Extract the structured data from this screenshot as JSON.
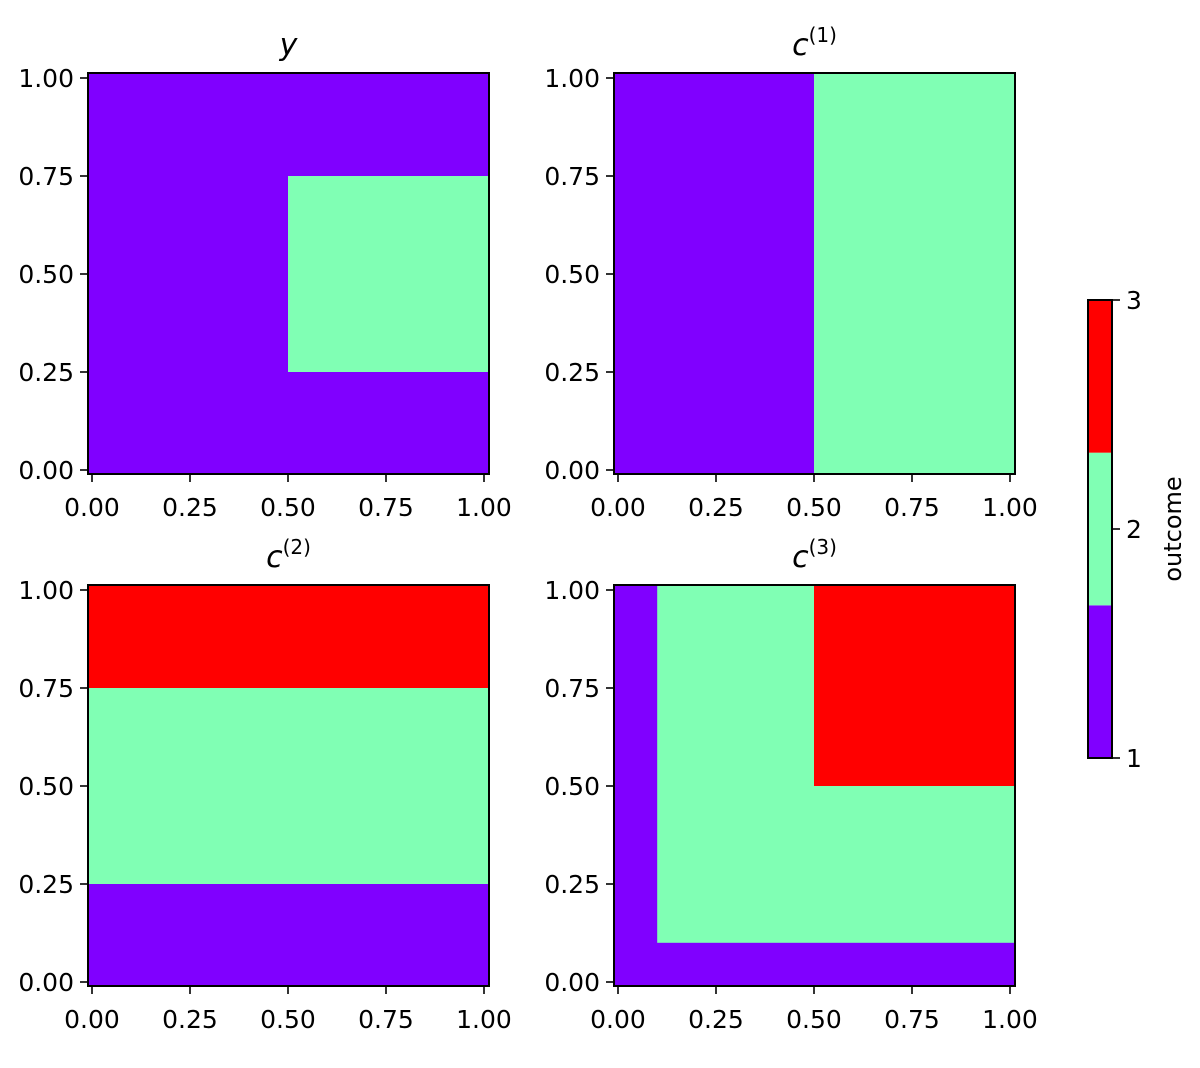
{
  "chart_data": [
    {
      "type": "heatmap",
      "title": "y",
      "title_sup": "",
      "xlim": [
        0,
        1
      ],
      "ylim": [
        0,
        1
      ],
      "xticks": [
        "0.00",
        "0.25",
        "0.50",
        "0.75",
        "1.00"
      ],
      "yticks": [
        "0.00",
        "0.25",
        "0.50",
        "0.75",
        "1.00"
      ],
      "background_outcome": 1,
      "regions": [
        {
          "x": [
            0.5,
            1.0
          ],
          "y": [
            0.25,
            0.75
          ],
          "outcome": 2
        }
      ]
    },
    {
      "type": "heatmap",
      "title": "c",
      "title_sup": "(1)",
      "xlim": [
        0,
        1
      ],
      "ylim": [
        0,
        1
      ],
      "xticks": [
        "0.00",
        "0.25",
        "0.50",
        "0.75",
        "1.00"
      ],
      "yticks": [
        "0.00",
        "0.25",
        "0.50",
        "0.75",
        "1.00"
      ],
      "background_outcome": 1,
      "regions": [
        {
          "x": [
            0.5,
            1.0
          ],
          "y": [
            0.0,
            1.0
          ],
          "outcome": 2
        }
      ]
    },
    {
      "type": "heatmap",
      "title": "c",
      "title_sup": "(2)",
      "xlim": [
        0,
        1
      ],
      "ylim": [
        0,
        1
      ],
      "xticks": [
        "0.00",
        "0.25",
        "0.50",
        "0.75",
        "1.00"
      ],
      "yticks": [
        "0.00",
        "0.25",
        "0.50",
        "0.75",
        "1.00"
      ],
      "background_outcome": 1,
      "regions": [
        {
          "x": [
            0.0,
            1.0
          ],
          "y": [
            0.25,
            0.75
          ],
          "outcome": 2
        },
        {
          "x": [
            0.0,
            1.0
          ],
          "y": [
            0.75,
            1.0
          ],
          "outcome": 3
        }
      ]
    },
    {
      "type": "heatmap",
      "title": "c",
      "title_sup": "(3)",
      "xlim": [
        0,
        1
      ],
      "ylim": [
        0,
        1
      ],
      "xticks": [
        "0.00",
        "0.25",
        "0.50",
        "0.75",
        "1.00"
      ],
      "yticks": [
        "0.00",
        "0.25",
        "0.50",
        "0.75",
        "1.00"
      ],
      "background_outcome": 1,
      "regions": [
        {
          "x": [
            0.1,
            1.0
          ],
          "y": [
            0.1,
            1.0
          ],
          "outcome": 2
        },
        {
          "x": [
            0.5,
            1.0
          ],
          "y": [
            0.5,
            1.0
          ],
          "outcome": 3
        }
      ]
    }
  ],
  "colorbar": {
    "label": "outcome",
    "ticks": [
      "1",
      "2",
      "3"
    ],
    "range": [
      1,
      3
    ],
    "colors": {
      "1": "#8000ff",
      "2": "#80ffb4",
      "3": "#ff0000"
    }
  }
}
